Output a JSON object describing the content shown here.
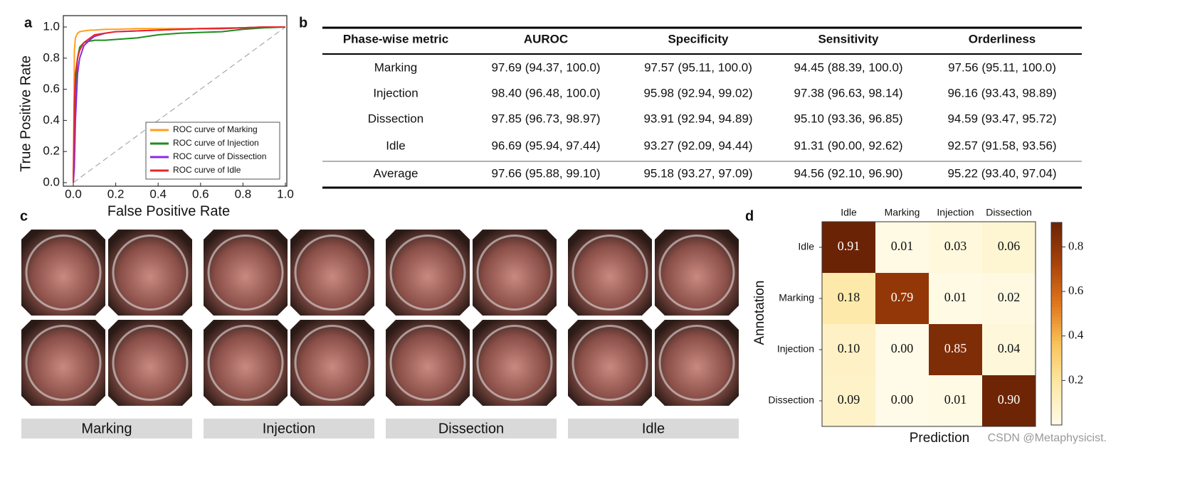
{
  "panel_labels": [
    "a",
    "b",
    "c",
    "d"
  ],
  "chart_data": [
    {
      "type": "line",
      "xlabel": "False  Positive Rate",
      "ylabel": "True  Positive Rate",
      "x": [
        0,
        0.005,
        0.01,
        0.02,
        0.03,
        0.05,
        0.08,
        0.1,
        0.15,
        0.2,
        0.3,
        0.4,
        0.5,
        0.6,
        0.7,
        0.8,
        0.9,
        1.0
      ],
      "series": [
        {
          "name": "ROC curve of  Marking",
          "color": "#ff9f1c",
          "values": [
            0,
            0.85,
            0.93,
            0.96,
            0.97,
            0.975,
            0.98,
            0.98,
            0.985,
            0.985,
            0.99,
            0.99,
            0.99,
            0.99,
            0.995,
            0.995,
            1,
            1
          ]
        },
        {
          "name": "ROC curve of  Injection",
          "color": "#1f8a1f",
          "values": [
            0,
            0.3,
            0.6,
            0.8,
            0.87,
            0.9,
            0.91,
            0.915,
            0.915,
            0.92,
            0.93,
            0.95,
            0.96,
            0.965,
            0.97,
            0.985,
            0.995,
            1
          ]
        },
        {
          "name": "ROC curve of  Dissection",
          "color": "#8a2be2",
          "values": [
            0,
            0.1,
            0.4,
            0.7,
            0.8,
            0.88,
            0.92,
            0.94,
            0.96,
            0.97,
            0.975,
            0.98,
            0.985,
            0.99,
            0.99,
            0.995,
            1,
            1
          ]
        },
        {
          "name": "ROC curve of  Idle",
          "color": "#e8262b",
          "values": [
            0,
            0.5,
            0.7,
            0.8,
            0.85,
            0.9,
            0.93,
            0.95,
            0.96,
            0.97,
            0.975,
            0.98,
            0.985,
            0.99,
            0.99,
            0.995,
            1,
            1
          ]
        }
      ],
      "xlim": [
        0,
        1
      ],
      "ylim": [
        0,
        1
      ],
      "xticks": [
        {
          "value": 0,
          "label": "0.0"
        },
        0.2,
        0.4,
        0.6,
        0.8,
        {
          "value": 1,
          "label": "1.0"
        }
      ],
      "yticks": [
        {
          "value": 0,
          "label": "0.0"
        },
        0.2,
        0.4,
        0.6,
        0.8,
        {
          "value": 1,
          "label": "1.0"
        }
      ],
      "legend": "lower right"
    },
    {
      "type": "heatmap",
      "xlabel": "Prediction",
      "ylabel": "Annotation",
      "x_categories": [
        "Idle",
        "Marking",
        "Injection",
        "Dissection"
      ],
      "y_categories": [
        "Idle",
        "Marking",
        "Injection",
        "Dissection"
      ],
      "values": [
        [
          0.91,
          0.01,
          0.03,
          0.06
        ],
        [
          0.18,
          0.79,
          0.01,
          0.02
        ],
        [
          0.1,
          0.0,
          0.85,
          0.04
        ],
        [
          0.09,
          0.0,
          0.01,
          0.9
        ]
      ],
      "value_labels": [
        [
          "0.91",
          "0.01",
          "0.03",
          "0.06"
        ],
        [
          "0.18",
          "0.79",
          "0.01",
          "0.02"
        ],
        [
          "0.10",
          "0.00",
          "0.85",
          "0.04"
        ],
        [
          "0.09",
          "0.00",
          "0.01",
          "0.90"
        ]
      ],
      "zlim": [
        0,
        0.91
      ],
      "zticks": [
        0.2,
        0.4,
        0.6,
        0.8
      ],
      "colormap": [
        "#fffbe8",
        "#fde9a8",
        "#f9c35a",
        "#e0761c",
        "#a8420a",
        "#6b2305"
      ]
    }
  ],
  "table": {
    "header": [
      "Phase-wise metric",
      "AUROC",
      "Specificity",
      "Sensitivity",
      "Orderliness"
    ],
    "rows": [
      [
        "Marking",
        "97.69 (94.37, 100.0)",
        "97.57 (95.11, 100.0)",
        "94.45 (88.39, 100.0)",
        "97.56 (95.11, 100.0)"
      ],
      [
        "Injection",
        "98.40 (96.48, 100.0)",
        "95.98 (92.94, 99.02)",
        "97.38 (96.63, 98.14)",
        "96.16 (93.43, 98.89)"
      ],
      [
        "Dissection",
        "97.85 (96.73, 98.97)",
        "93.91 (92.94, 94.89)",
        "95.10 (93.36, 96.85)",
        "94.59 (93.47, 95.72)"
      ],
      [
        "Idle",
        "96.69 (95.94, 97.44)",
        "93.27 (92.09, 94.44)",
        "91.31 (90.00, 92.62)",
        "92.57 (91.58, 93.56)"
      ],
      [
        "Average",
        "97.66 (95.88, 99.10)",
        "95.18 (93.27, 97.09)",
        "94.56 (92.10, 96.90)",
        "95.22 (93.40, 97.04)"
      ]
    ]
  },
  "image_grid": {
    "labels": [
      "Marking",
      "Injection",
      "Dissection",
      "Idle"
    ]
  },
  "watermark": "CSDN @Metaphysicist."
}
